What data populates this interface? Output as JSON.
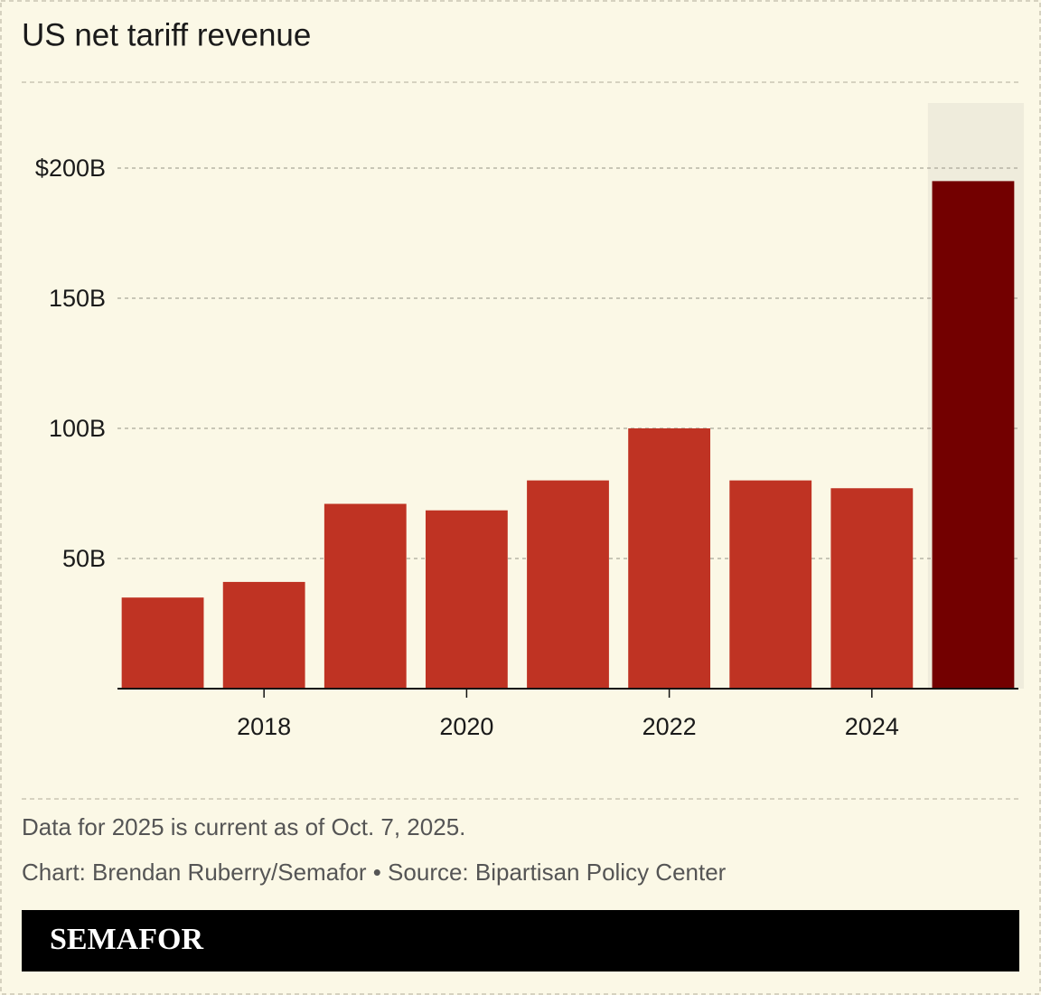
{
  "chart_data": {
    "type": "bar",
    "title": "US net tariff revenue",
    "x": [
      2017,
      2018,
      2019,
      2020,
      2021,
      2022,
      2023,
      2024,
      2025
    ],
    "values": [
      35,
      41,
      71,
      68.5,
      80,
      100,
      80,
      77,
      195
    ],
    "colors": [
      "#bf3323",
      "#bf3323",
      "#bf3323",
      "#bf3323",
      "#bf3323",
      "#bf3323",
      "#bf3323",
      "#bf3323",
      "#730000"
    ],
    "xlim": [
      2016.5,
      2025.5
    ],
    "xticks": [
      2018,
      2020,
      2022,
      2024
    ],
    "ylim": [
      0,
      225
    ],
    "yticks": [
      {
        "value": 50,
        "label": "50B"
      },
      {
        "value": 100,
        "label": "100B"
      },
      {
        "value": 150,
        "label": "150B"
      },
      {
        "value": 200,
        "label": "$200B"
      }
    ],
    "grid": true,
    "note": "Data for 2025 is current as of Oct. 7, 2025.",
    "credit": "Chart: Brendan Ruberry/Semafor • Source: Bipartisan Policy Center"
  },
  "brand": "SEMAFOR"
}
